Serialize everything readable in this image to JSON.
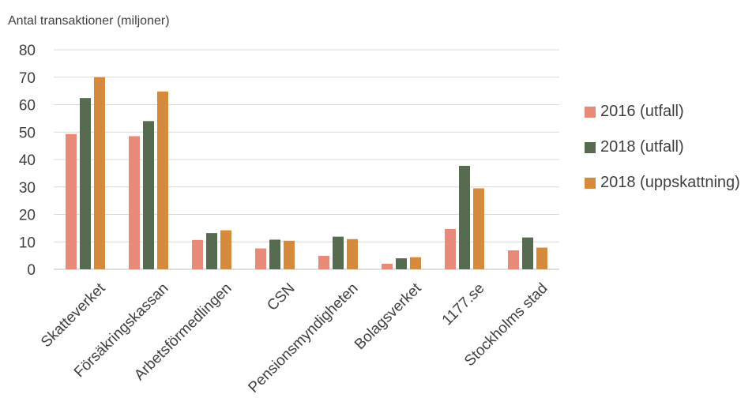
{
  "chart_data": {
    "type": "bar",
    "ylabel": "Antal transaktioner (miljoner)",
    "xlabel": "",
    "ylim": [
      0,
      80
    ],
    "yticks": [
      0,
      10,
      20,
      30,
      40,
      50,
      60,
      70,
      80
    ],
    "grid": true,
    "legend_position": "right",
    "categories": [
      "Skatteverket",
      "Försäkringskassan",
      "Arbetsförmedlingen",
      "CSN",
      "Pensionsmyndigheten",
      "Bolagsverket",
      "1177.se",
      "Stockholms stad"
    ],
    "series": [
      {
        "name": "2016 (utfall)",
        "color": "#E8897A",
        "values": [
          49.3,
          48.5,
          10.7,
          7.6,
          4.9,
          2.0,
          14.7,
          6.9
        ]
      },
      {
        "name": "2018 (utfall)",
        "color": "#576B50",
        "values": [
          62.4,
          54.0,
          13.2,
          10.8,
          11.9,
          4.0,
          37.7,
          11.6
        ]
      },
      {
        "name": "2018 (uppskattning)",
        "color": "#D58A3E",
        "values": [
          70.0,
          64.8,
          14.2,
          10.4,
          11.0,
          4.4,
          29.5,
          7.9
        ]
      }
    ]
  }
}
